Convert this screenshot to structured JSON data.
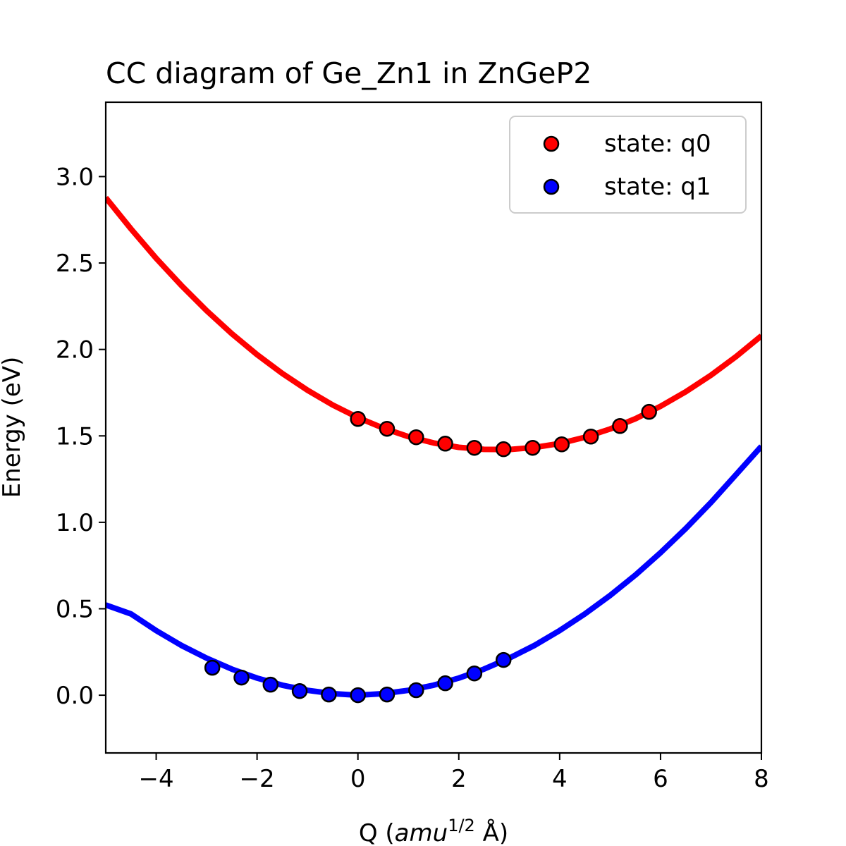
{
  "chart_data": {
    "type": "line",
    "title": "CC diagram of Ge_Zn1 in ZnGeP2",
    "xlabel": {
      "prefix": "Q (",
      "italic": "amu",
      "superscript": "1/2",
      "suffix": " Å)"
    },
    "ylabel": "Energy (eV)",
    "xlim": [
      -5,
      8
    ],
    "ylim": [
      -0.334,
      3.43
    ],
    "xticks": [
      -4,
      -2,
      0,
      2,
      4,
      6,
      8
    ],
    "xtick_labels": [
      "−4",
      "−2",
      "0",
      "2",
      "4",
      "6",
      "8"
    ],
    "yticks": [
      0.0,
      0.5,
      1.0,
      1.5,
      2.0,
      2.5,
      3.0
    ],
    "ytick_labels": [
      "0.0",
      "0.5",
      "1.0",
      "1.5",
      "2.0",
      "2.5",
      "3.0"
    ],
    "grid": false,
    "legend_position": "top-right",
    "series": [
      {
        "name": "state: q0",
        "color": "#ff0000",
        "points": {
          "x": [
            0,
            0.577,
            1.155,
            1.732,
            2.309,
            2.887,
            3.464,
            4.041,
            4.619,
            5.196,
            5.773
          ],
          "y": [
            1.598,
            1.541,
            1.492,
            1.455,
            1.431,
            1.423,
            1.431,
            1.451,
            1.496,
            1.557,
            1.639
          ]
        },
        "curve": {
          "x": [
            -5,
            -4.5,
            -4,
            -3.5,
            -3,
            -2.5,
            -2,
            -1.5,
            -1,
            -0.5,
            0,
            0.5,
            1,
            1.5,
            2,
            2.5,
            3,
            3.5,
            4,
            4.5,
            5,
            5.5,
            6,
            6.5,
            7,
            7.5,
            8
          ],
          "y": [
            2.878,
            2.697,
            2.527,
            2.37,
            2.224,
            2.091,
            1.97,
            1.861,
            1.764,
            1.679,
            1.606,
            1.545,
            1.496,
            1.459,
            1.434,
            1.422,
            1.421,
            1.433,
            1.456,
            1.492,
            1.54,
            1.599,
            1.671,
            1.755,
            1.851,
            1.959,
            2.079
          ]
        }
      },
      {
        "name": "state: q1",
        "color": "#0000ff",
        "points": {
          "x": [
            -2.887,
            -2.309,
            -1.732,
            -1.155,
            -0.577,
            0,
            0.577,
            1.155,
            1.732,
            2.309,
            2.887
          ],
          "y": [
            0.159,
            0.102,
            0.061,
            0.024,
            0.004,
            0.0,
            0.004,
            0.029,
            0.069,
            0.126,
            0.204
          ]
        },
        "curve": {
          "x": [
            -5,
            -4.5,
            -4,
            -3.5,
            -3,
            -2.5,
            -2,
            -1.5,
            -1,
            -0.5,
            0,
            0.5,
            1,
            1.5,
            2,
            2.5,
            3,
            3.5,
            4,
            4.5,
            5,
            5.5,
            6,
            6.5,
            7,
            7.5,
            8
          ],
          "y": [
            0.522,
            0.47,
            0.374,
            0.288,
            0.214,
            0.151,
            0.099,
            0.058,
            0.028,
            0.009,
            0.0,
            0.009,
            0.028,
            0.058,
            0.099,
            0.151,
            0.214,
            0.288,
            0.374,
            0.47,
            0.577,
            0.695,
            0.824,
            0.964,
            1.115,
            1.277,
            1.44
          ]
        }
      }
    ]
  }
}
